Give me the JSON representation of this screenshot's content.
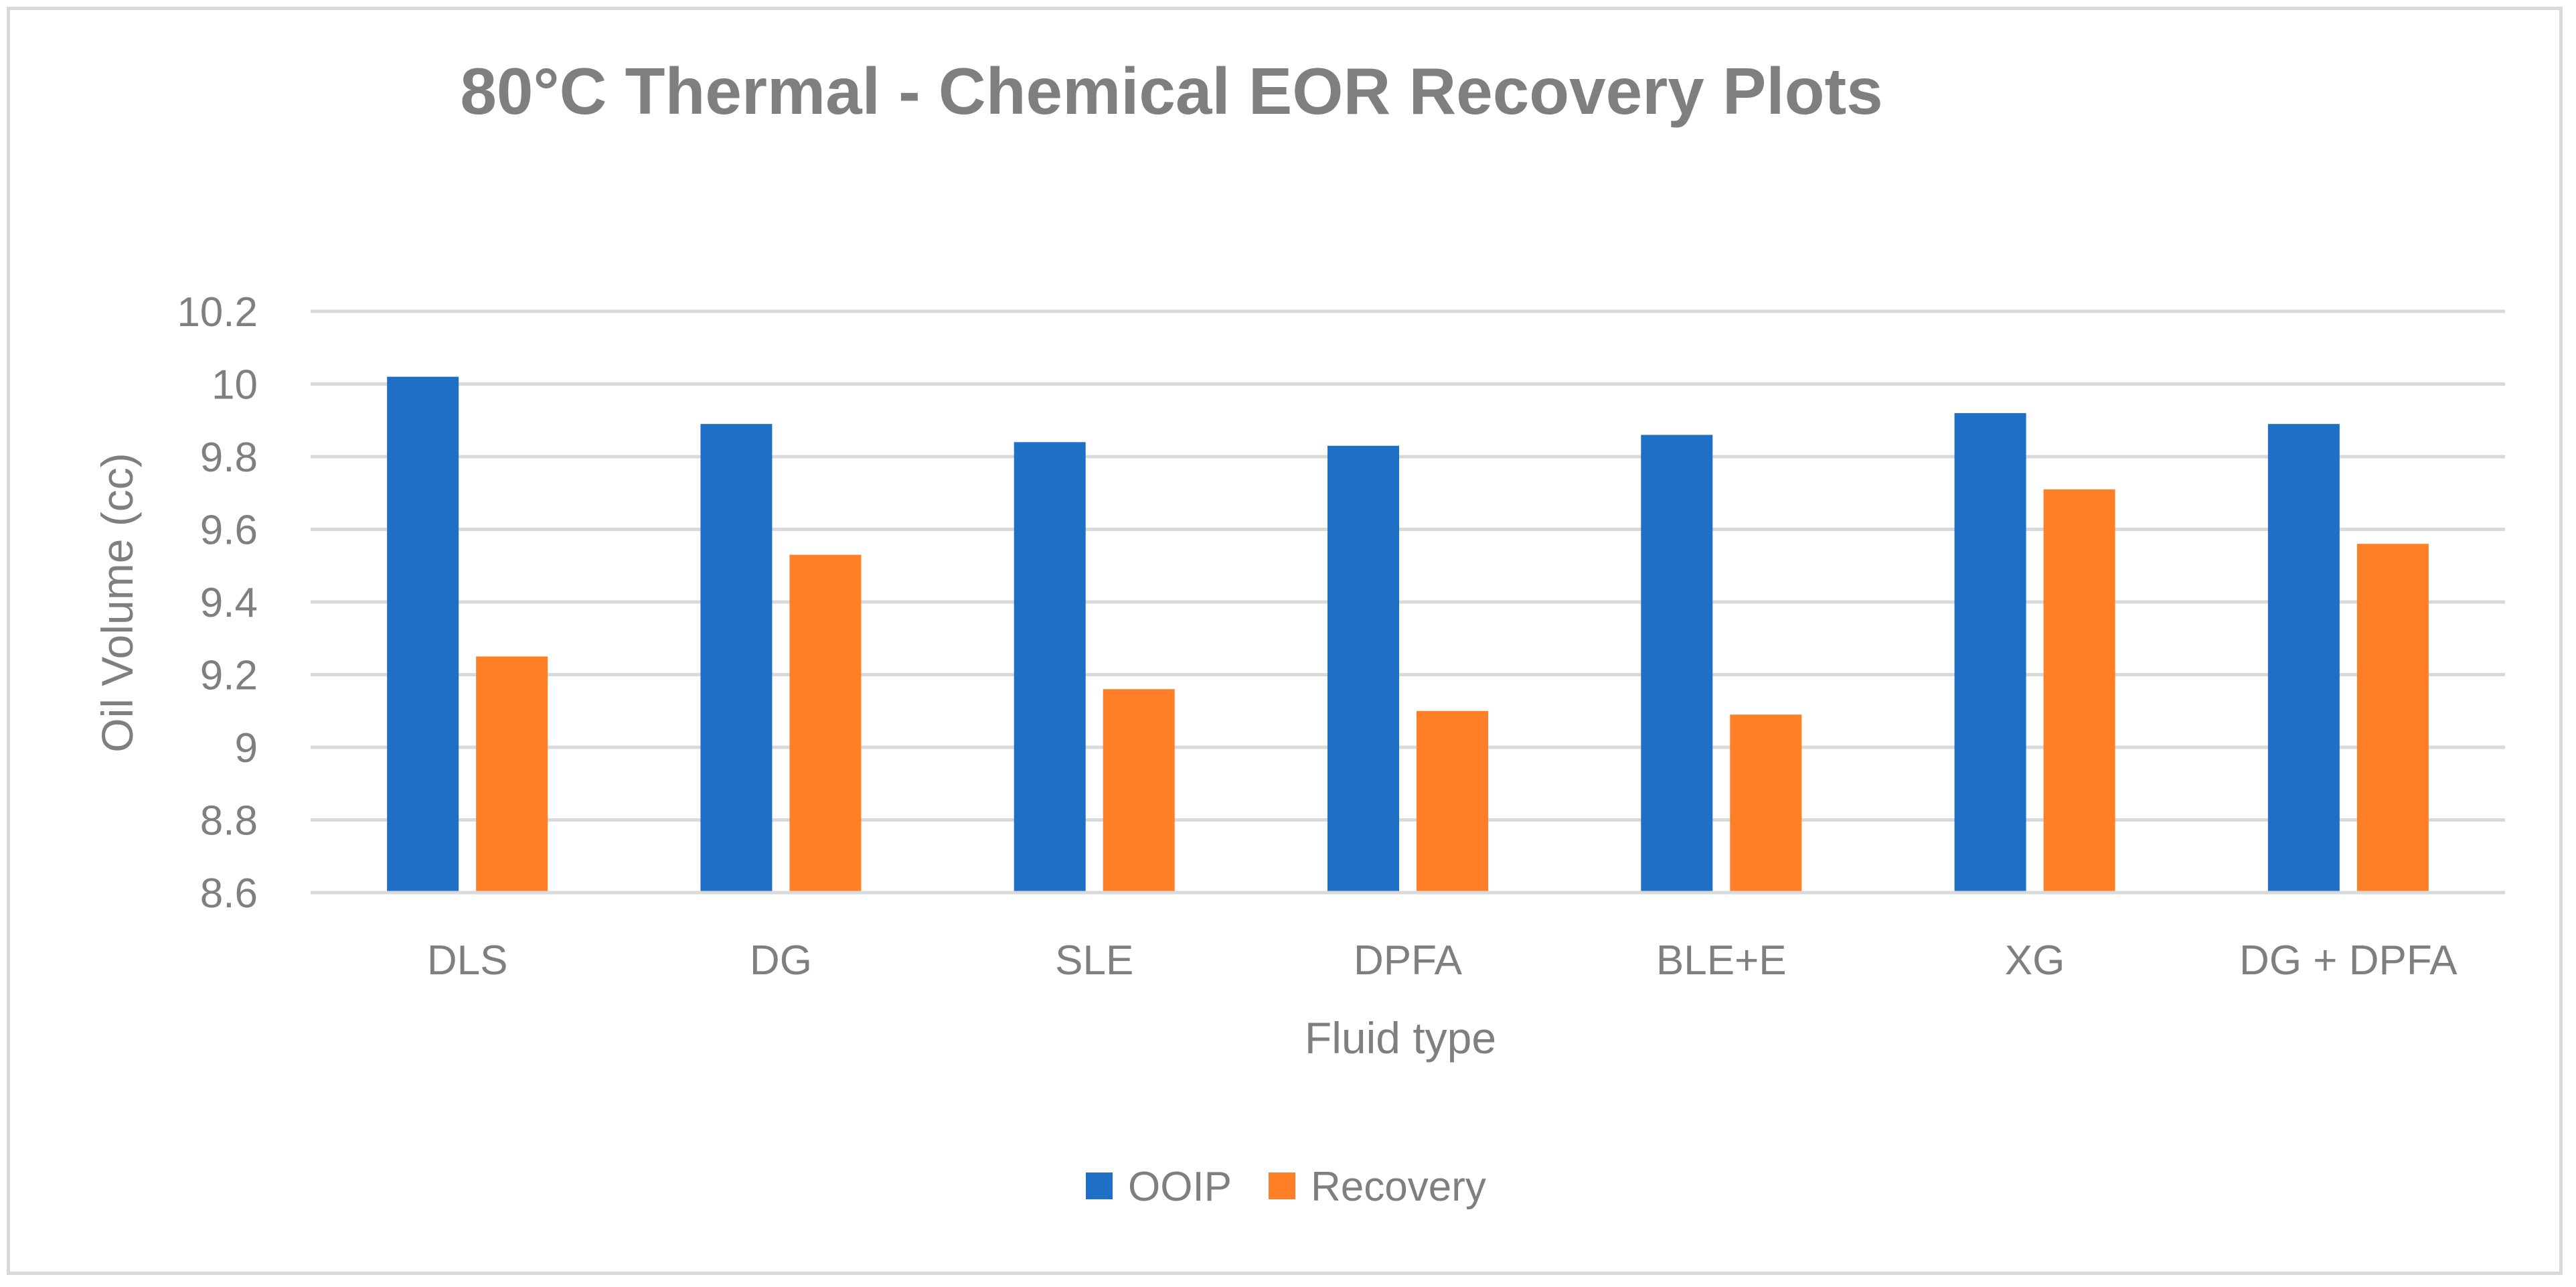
{
  "chart_data": {
    "type": "bar",
    "title": "80°C Thermal - Chemical EOR Recovery Plots",
    "xlabel": "Fluid type",
    "ylabel": "Oil Volume (cc)",
    "categories": [
      "DLS",
      "DG",
      "SLE",
      "DPFA",
      "BLE+E",
      "XG",
      "DG + DPFA"
    ],
    "series": [
      {
        "name": "OOIP",
        "color": "#1f6fc6",
        "values": [
          10.02,
          9.89,
          9.84,
          9.83,
          9.86,
          9.92,
          9.89
        ]
      },
      {
        "name": "Recovery",
        "color": "#ff7f27",
        "values": [
          9.25,
          9.53,
          9.16,
          9.1,
          9.09,
          9.71,
          9.56
        ]
      }
    ],
    "ylim": [
      8.6,
      10.2
    ],
    "yticks": [
      "8.6",
      "8.8",
      "9",
      "9.2",
      "9.4",
      "9.6",
      "9.8",
      "10",
      "10.2"
    ],
    "grid": true,
    "legend_position": "bottom-center"
  }
}
